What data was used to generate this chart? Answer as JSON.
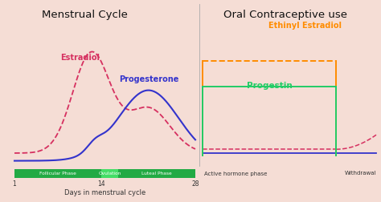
{
  "title_left": "Menstrual Cycle",
  "title_right": "Oral Contraceptive use",
  "background_color": "#f5ddd5",
  "estradiol_color": "#d63060",
  "progesterone_color": "#3333cc",
  "ethinyl_color": "#ff8c00",
  "progestin_color": "#22cc66",
  "phase_bar_dark": "#22aa44",
  "phase_bar_light": "#44dd66",
  "axis_label": "Days in menstrual cycle",
  "tick_labels": [
    "1",
    "14",
    "28"
  ],
  "phase_labels": [
    "Follicular Phase",
    "Ovulation",
    "Luteal Phase"
  ],
  "right_labels": [
    "Active hormone phase",
    "Withdrawal"
  ],
  "label_estradiol": "Estradiol",
  "label_progesterone": "Progesterone",
  "label_ethinyl": "Ethinyl Estradiol",
  "label_progestin": "Progestin",
  "figsize": [
    4.74,
    2.52
  ],
  "dpi": 100
}
